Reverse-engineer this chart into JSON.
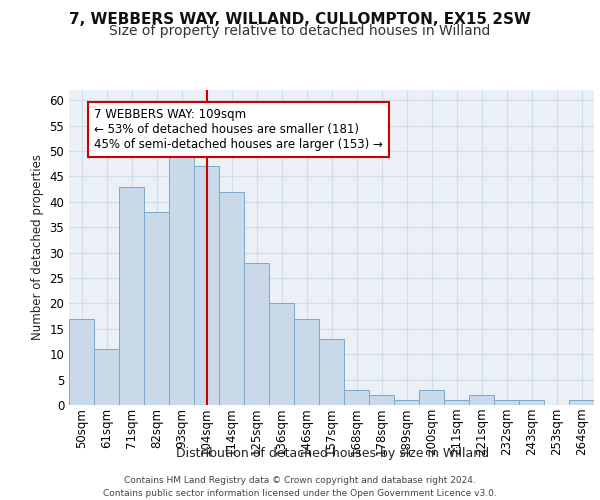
{
  "title_line1": "7, WEBBERS WAY, WILLAND, CULLOMPTON, EX15 2SW",
  "title_line2": "Size of property relative to detached houses in Willand",
  "xlabel": "Distribution of detached houses by size in Willand",
  "ylabel": "Number of detached properties",
  "bar_labels": [
    "50sqm",
    "61sqm",
    "71sqm",
    "82sqm",
    "93sqm",
    "104sqm",
    "114sqm",
    "125sqm",
    "136sqm",
    "146sqm",
    "157sqm",
    "168sqm",
    "178sqm",
    "189sqm",
    "200sqm",
    "211sqm",
    "221sqm",
    "232sqm",
    "243sqm",
    "253sqm",
    "264sqm"
  ],
  "bar_values": [
    17,
    11,
    43,
    38,
    50,
    47,
    42,
    28,
    20,
    17,
    13,
    3,
    2,
    1,
    3,
    1,
    2,
    1,
    1,
    0,
    1
  ],
  "bar_color": "#c9d9ea",
  "bar_edge_color": "#7aaac8",
  "vline_index": 5.5,
  "annotation_text": "7 WEBBERS WAY: 109sqm\n← 53% of detached houses are smaller (181)\n45% of semi-detached houses are larger (153) →",
  "annotation_box_facecolor": "#ffffff",
  "annotation_box_edgecolor": "#cc0000",
  "vline_color": "#cc0000",
  "ylim": [
    0,
    62
  ],
  "yticks": [
    0,
    5,
    10,
    15,
    20,
    25,
    30,
    35,
    40,
    45,
    50,
    55,
    60
  ],
  "footer_text": "Contains HM Land Registry data © Crown copyright and database right 2024.\nContains public sector information licensed under the Open Government Licence v3.0.",
  "grid_color": "#d0dde8",
  "bg_color": "#eaf0f6",
  "title1_fontsize": 11,
  "title2_fontsize": 10,
  "xlabel_fontsize": 9,
  "ylabel_fontsize": 8.5,
  "tick_fontsize": 8.5,
  "footer_fontsize": 6.5,
  "annot_fontsize": 8.5
}
